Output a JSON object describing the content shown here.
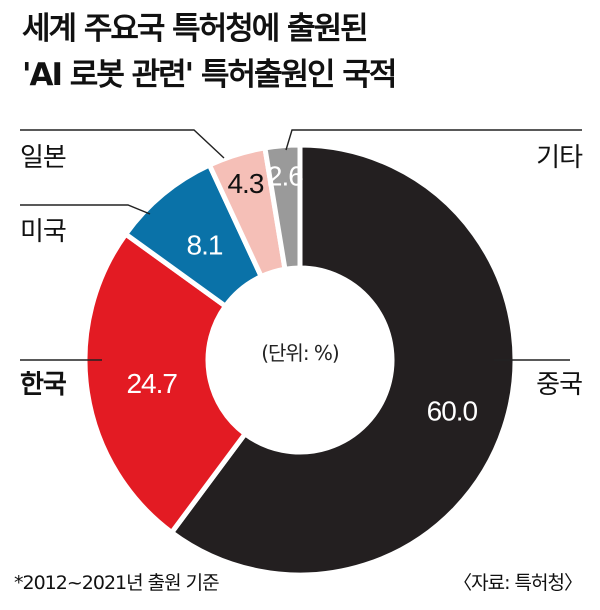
{
  "title_line1": "세계 주요국 특허청에 출원된",
  "title_line2": "'AI 로봇 관련' 특허출원인 국적",
  "unit_label": "(단위: %)",
  "footnote": "*2012~2021년 출원 기준",
  "source": "〈자료: 특허청〉",
  "colors": {
    "china": "#231f20",
    "korea": "#e31b23",
    "usa": "#0a72a8",
    "japan": "#f5bfb7",
    "other": "#9a9a9a"
  },
  "chart_data": {
    "type": "pie",
    "donut": true,
    "title": "세계 주요국 특허청에 출원된 'AI 로봇 관련' 특허출원인 국적",
    "unit": "%",
    "start": "12 o'clock, clockwise",
    "slices": [
      {
        "label": "중국",
        "value": 60.0,
        "display": "60.0",
        "color": "#231f20",
        "value_text_color": "#ffffff",
        "bold": false
      },
      {
        "label": "한국",
        "value": 24.7,
        "display": "24.7",
        "color": "#e31b23",
        "value_text_color": "#ffffff",
        "bold": true
      },
      {
        "label": "미국",
        "value": 8.1,
        "display": "8.1",
        "color": "#0a72a8",
        "value_text_color": "#ffffff",
        "bold": false
      },
      {
        "label": "일본",
        "value": 4.3,
        "display": "4.3",
        "color": "#f5bfb7",
        "value_text_color": "#111111",
        "bold": false
      },
      {
        "label": "기타",
        "value": 2.6,
        "display": "2.6",
        "color": "#9a9a9a",
        "value_text_color": "#ffffff",
        "bold": false
      }
    ]
  }
}
